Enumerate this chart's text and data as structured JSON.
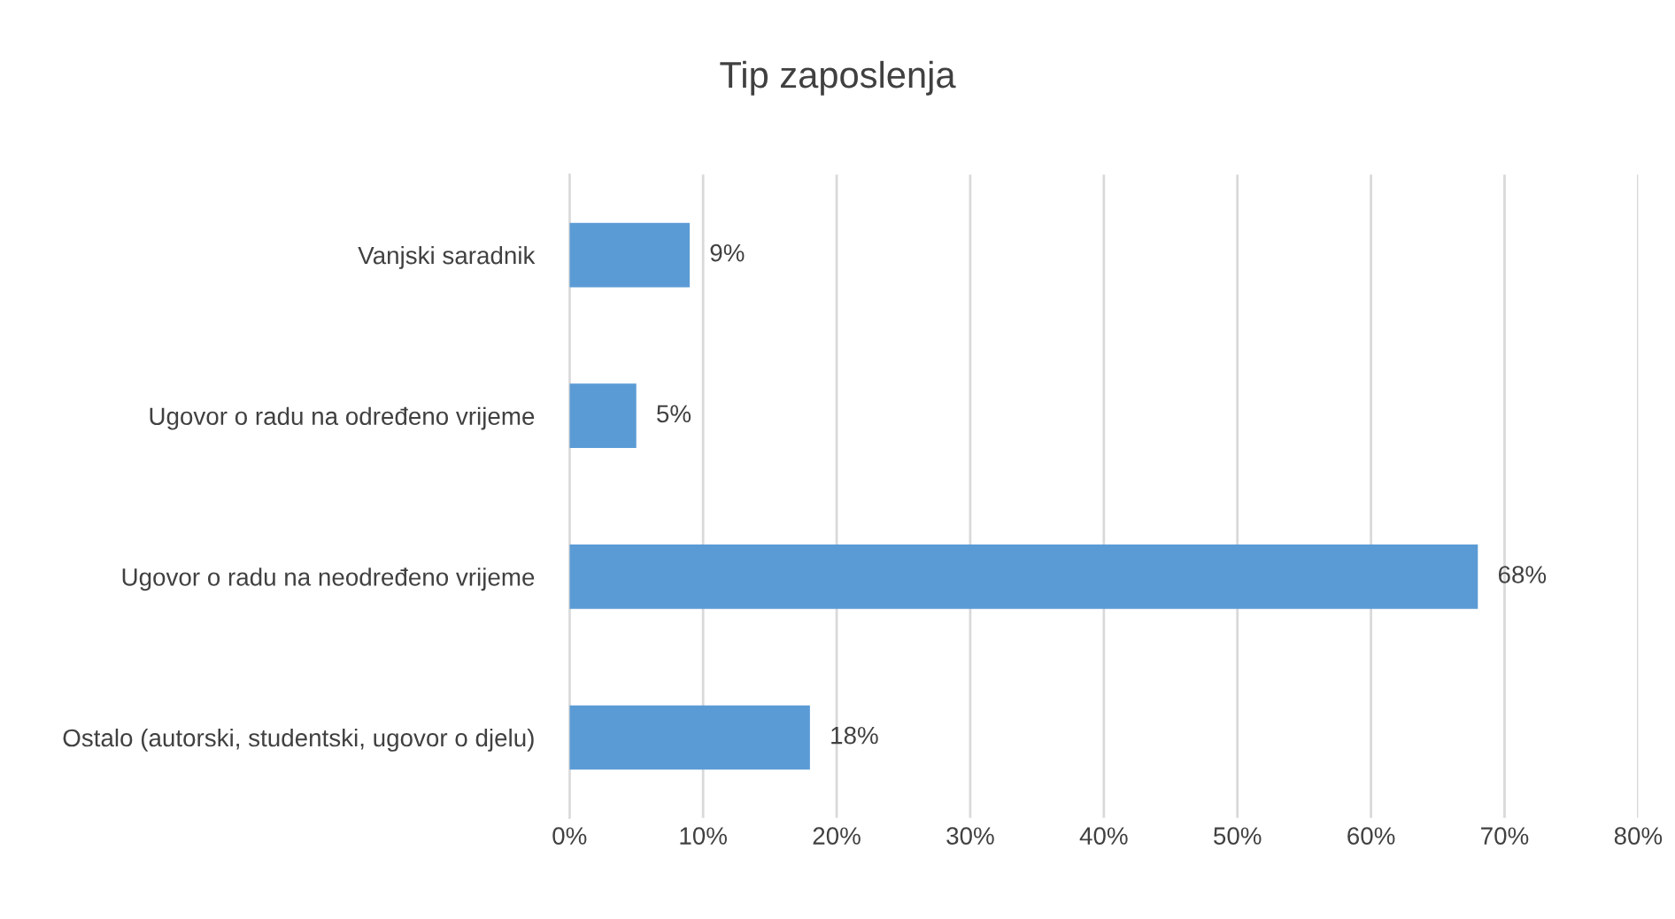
{
  "chart_data": {
    "type": "bar",
    "orientation": "horizontal",
    "title": "Tip zaposlenja",
    "categories": [
      "Vanjski saradnik",
      "Ugovor o radu na određeno vrijeme",
      "Ugovor o radu na neodređeno vrijeme",
      "Ostalo (autorski, studentski, ugovor o djelu)"
    ],
    "values": [
      9,
      5,
      68,
      18
    ],
    "value_labels": [
      "9%",
      "5%",
      "68%",
      "18%"
    ],
    "color": "#5b9bd5",
    "xlim": [
      0,
      80
    ],
    "xticks": [
      {
        "value": 0,
        "label": "0%"
      },
      {
        "value": 10,
        "label": "10%"
      },
      {
        "value": 20,
        "label": "20%"
      },
      {
        "value": 30,
        "label": "30%"
      },
      {
        "value": 40,
        "label": "40%"
      },
      {
        "value": 50,
        "label": "50%"
      },
      {
        "value": 60,
        "label": "60%"
      },
      {
        "value": 70,
        "label": "70%"
      },
      {
        "value": 80,
        "label": "80%"
      }
    ],
    "grid": "x"
  }
}
